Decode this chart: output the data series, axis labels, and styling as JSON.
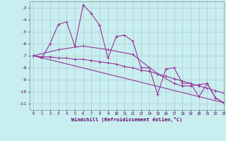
{
  "xlabel": "Windchill (Refroidissement éolien,°C)",
  "xlim": [
    -0.5,
    23
  ],
  "ylim": [
    -11.5,
    -2.5
  ],
  "yticks": [
    -11,
    -10,
    -9,
    -8,
    -7,
    -6,
    -5,
    -4,
    -3
  ],
  "xticks": [
    0,
    1,
    2,
    3,
    4,
    5,
    6,
    7,
    8,
    9,
    10,
    11,
    12,
    13,
    14,
    15,
    16,
    17,
    18,
    19,
    20,
    21,
    22,
    23
  ],
  "background_color": "#c8eef0",
  "grid_color": "#b0ccd0",
  "line_color": "#993399",
  "line1_x": [
    0,
    1,
    2,
    3,
    4,
    5,
    6,
    7,
    8,
    9,
    10,
    11,
    12,
    13,
    14,
    15,
    16,
    17,
    18,
    19,
    20,
    21,
    22,
    23
  ],
  "line1_y": [
    -7.0,
    -7.2,
    -6.0,
    -4.4,
    -4.2,
    -6.2,
    -2.8,
    -3.5,
    -4.5,
    -7.2,
    -5.4,
    -5.3,
    -5.8,
    -8.0,
    -8.0,
    -10.2,
    -8.1,
    -8.0,
    -9.3,
    -9.3,
    -10.4,
    -9.3,
    -10.5,
    -10.9
  ],
  "line2_x": [
    0,
    1,
    2,
    3,
    4,
    5,
    6,
    7,
    8,
    9,
    10,
    11,
    12,
    13,
    14,
    15,
    16,
    17,
    18,
    19,
    20,
    21,
    22,
    23
  ],
  "line2_y": [
    -7.0,
    -7.1,
    -7.1,
    -7.2,
    -7.2,
    -7.3,
    -7.3,
    -7.4,
    -7.5,
    -7.6,
    -7.7,
    -7.9,
    -8.0,
    -8.2,
    -8.3,
    -8.5,
    -8.7,
    -8.9,
    -9.1,
    -9.3,
    -9.5,
    -9.7,
    -9.9,
    -10.1
  ],
  "line3_x": [
    0,
    3,
    6,
    9,
    12,
    15,
    17,
    18,
    19,
    20,
    21,
    22,
    23
  ],
  "line3_y": [
    -7.0,
    -6.5,
    -6.2,
    -6.5,
    -6.9,
    -8.5,
    -9.3,
    -9.5,
    -9.5,
    -9.4,
    -9.3,
    -10.5,
    -10.9
  ],
  "line4_x": [
    0,
    23
  ],
  "line4_y": [
    -7.0,
    -10.9
  ]
}
